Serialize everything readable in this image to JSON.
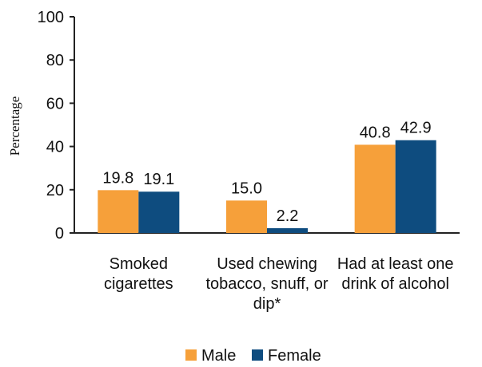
{
  "chart_data": {
    "type": "bar",
    "title": "",
    "xlabel": "",
    "ylabel": "Percentage",
    "ylim": [
      0,
      100
    ],
    "yticks": [
      0,
      20,
      40,
      60,
      80,
      100
    ],
    "grid": false,
    "legend_position": "bottom",
    "categories": [
      [
        "Smoked",
        "cigarettes"
      ],
      [
        "Used chewing",
        "tobacco, snuff, or",
        "dip*"
      ],
      [
        "Had at least one",
        "drink of alcohol"
      ]
    ],
    "series": [
      {
        "name": "Male",
        "color": "#F6A03A",
        "values": [
          19.8,
          15.0,
          40.8
        ],
        "labels": [
          "19.8",
          "15.0",
          "40.8"
        ]
      },
      {
        "name": "Female",
        "color": "#0E4C7F",
        "values": [
          19.1,
          2.2,
          42.9
        ],
        "labels": [
          "19.1",
          "2.2",
          "42.9"
        ]
      }
    ]
  }
}
